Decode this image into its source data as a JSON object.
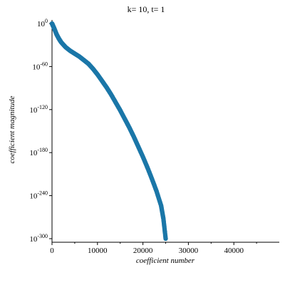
{
  "chart_data": {
    "type": "scatter",
    "title": "k= 10, t= 1",
    "xlabel": "coefficient number",
    "ylabel": "coefficient magnitude",
    "xlim": [
      0,
      50000
    ],
    "ylim_log10": [
      -305,
      5
    ],
    "y_scale": "log",
    "x_ticks": [
      "0",
      "10000",
      "20000",
      "30000",
      "40000"
    ],
    "x_tick_values": [
      0,
      10000,
      20000,
      30000,
      40000
    ],
    "y_ticks": [
      {
        "base": "10",
        "exp": "0",
        "value_log10": 0
      },
      {
        "base": "10",
        "exp": "-60",
        "value_log10": -60
      },
      {
        "base": "10",
        "exp": "-120",
        "value_log10": -120
      },
      {
        "base": "10",
        "exp": "-180",
        "value_log10": -180
      },
      {
        "base": "10",
        "exp": "-240",
        "value_log10": -240
      },
      {
        "base": "10",
        "exp": "-300",
        "value_log10": -300
      }
    ],
    "marker_color": "#1b77a8",
    "series": [
      {
        "x": [
          0,
          200,
          500,
          1000,
          1500,
          2000,
          3000,
          4000,
          5000,
          6000,
          7000,
          8000,
          9000,
          10000,
          11000,
          12000,
          13000,
          14000,
          15000,
          16000,
          17000,
          18000,
          19000,
          20000,
          21000,
          22000,
          23000,
          24000,
          24500,
          25000
        ],
        "y_log10": [
          0,
          -3,
          -7,
          -15,
          -21,
          -26,
          -33,
          -38,
          -42,
          -46,
          -51,
          -56,
          -63,
          -71,
          -80,
          -89,
          -99,
          -110,
          -121,
          -133,
          -145,
          -158,
          -172,
          -186,
          -201,
          -217,
          -234,
          -254,
          -272,
          -300
        ]
      }
    ],
    "grid": false
  }
}
